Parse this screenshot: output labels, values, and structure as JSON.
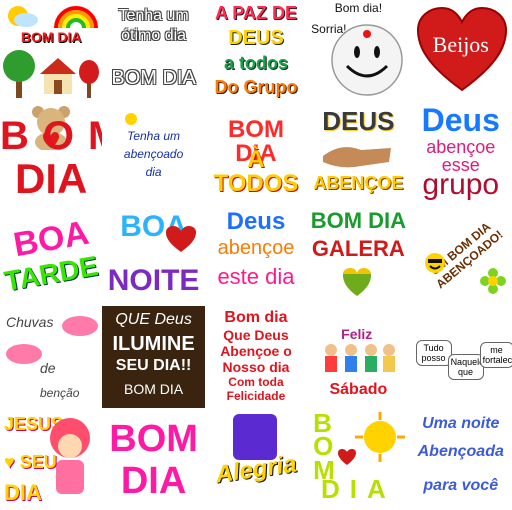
{
  "stickers": [
    {
      "text": "BOM DIA"
    },
    {
      "line1": "Tenha um",
      "line2": "ótimo dia",
      "line3": "BOM DIA"
    },
    {
      "line1": "A PAZ DE",
      "line2": "DEUS",
      "line3": "a todos",
      "line4": "Do Grupo"
    },
    {
      "bubble": "Bom dia!",
      "line2": "Sorria!"
    },
    {
      "text": "Beijos"
    },
    {
      "line1": "BOM",
      "line2": "DIA"
    },
    {
      "line1": "Tenha um",
      "line2": "abençoado",
      "line3": "dia"
    },
    {
      "line1": "BOM DIA",
      "line2": "À TODOS"
    },
    {
      "line1": "DEUS",
      "line2": "ABENÇOE"
    },
    {
      "line1": "Deus",
      "line2": "abençoe",
      "line3": "esse",
      "line4": "grupo"
    },
    {
      "line1": "BOA",
      "line2": "TARDE"
    },
    {
      "line1": "BOA",
      "line2": "NOITE"
    },
    {
      "line1": "Deus",
      "line2": "abençoe",
      "line3": "este dia"
    },
    {
      "line1": "BOM DIA",
      "line2": "GALERA"
    },
    {
      "text": "UM BOM DIA ABENÇOADO!"
    },
    {
      "line1": "Chuvas",
      "line2": "de",
      "line3": "benção"
    },
    {
      "line1": "QUE Deus",
      "line2": "ILUMINE",
      "line3": "SEU DIA!!",
      "line4": "BOM DIA"
    },
    {
      "line1": "Bom dia",
      "line2": "Que Deus",
      "line3": "Abençoe o",
      "line4": "Nosso dia",
      "line5": "Com toda",
      "line6": "Felicidade"
    },
    {
      "line1": "Feliz",
      "line2": "Sábado"
    },
    {
      "line1": "Tudo posso",
      "line2": "Naquele que",
      "line3": "me fortalece!"
    },
    {
      "line1": "JESUS",
      "line2": "♥ SEU",
      "line3": "DIA"
    },
    {
      "line1": "BOM",
      "line2": "DIA"
    },
    {
      "line1": "Alegria"
    },
    {
      "line1": "BOM",
      "line2": "DIA"
    },
    {
      "line1": "Uma noite",
      "line2": "Abençoada",
      "line3": "para você"
    }
  ],
  "colors": {
    "rainbow": [
      "#ff0000",
      "#ff8800",
      "#ffee00",
      "#22bb22",
      "#2266ff",
      "#8822cc"
    ],
    "red": "#e0141e",
    "yellow": "#ffd200",
    "magenta": "#ff1aa6"
  },
  "icons": [
    "sun-icon",
    "rainbow-icon",
    "tree-icon",
    "house-icon",
    "smiley-icon",
    "heart-icon",
    "teddy-bear-icon",
    "praying-hands-icon",
    "flower-icon",
    "star-icon",
    "cloud-icon",
    "children-icon",
    "strawberry-girl-icon"
  ]
}
